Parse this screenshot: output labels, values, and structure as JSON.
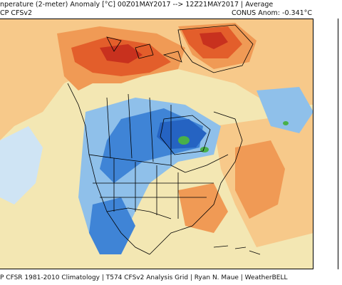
{
  "header": {
    "title": "nperature (2-meter) Anomaly  [°C] 00Z01MAY2017 --> 12Z21MAY2017 | Average",
    "source": "CP CFSv2",
    "anomaly": "CONUS Anom: -0.341°C"
  },
  "footer": {
    "text": "P CFSR 1981-2010 Climatology | T574 CFSv2 Analysis Grid | Ryan N. Maue | WeatherBELL"
  },
  "map": {
    "colors": {
      "ocean_neutral": "#f3e7b3",
      "warm_light": "#f7c98a",
      "warm_med": "#f09a55",
      "warm_strong": "#e35e2b",
      "hot": "#c8311e",
      "cool_light": "#cfe4f4",
      "cool_med": "#8fc0ea",
      "cool_strong": "#3f84d6",
      "cold": "#2563c2",
      "green_cold": "#48b04a",
      "border": "#000000"
    }
  }
}
